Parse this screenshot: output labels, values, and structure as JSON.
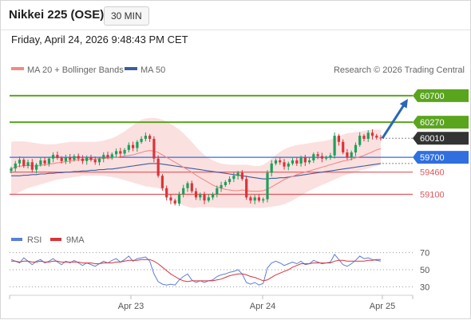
{
  "header": {
    "title": "Nikkei 225 (OSE)",
    "timeframe": "30 MIN",
    "datetime": "Friday, April 24, 2026 9:48:43 PM CET"
  },
  "legend": {
    "ma20": "MA 20 + Bollinger Bands",
    "ma50": "MA 50",
    "credit": "Research © 2026 Trading Central"
  },
  "rsi_legend": {
    "rsi": "RSI",
    "ma9": "9MA"
  },
  "colors": {
    "resistance": "#5aa51e",
    "support": "#e0565a",
    "pivot": "#2f6fe0",
    "last": "#333333",
    "up": "#1aa15a",
    "down": "#d9343a",
    "ma20": "#f28b82",
    "ma50": "#3d5d9e",
    "bollinger": "#fadada",
    "rsi": "#5b7fd6",
    "rsi_ma": "#d9343a",
    "arrow": "#2a66b8"
  },
  "chart_data": [
    {
      "type": "candlestick",
      "title": "Nikkei 225 (OSE)",
      "interval": "30 MIN",
      "x_ticks": [
        "Apr 23",
        "Apr 24",
        "Apr 25"
      ],
      "ylim": [
        58550,
        61100
      ],
      "levels": [
        {
          "label": "60700",
          "value": 60700,
          "kind": "resistance"
        },
        {
          "label": "60270",
          "value": 60270,
          "kind": "resistance"
        },
        {
          "label": "60010",
          "value": 60010,
          "kind": "last"
        },
        {
          "label": "59700",
          "value": 59700,
          "kind": "pivot"
        },
        {
          "label": "59460",
          "value": 59460,
          "kind": "support"
        },
        {
          "label": "59100",
          "value": 59100,
          "kind": "support"
        }
      ],
      "forecast_target": 60700,
      "closes": [
        59520,
        59600,
        59660,
        59560,
        59620,
        59500,
        59580,
        59650,
        59600,
        59680,
        59740,
        59690,
        59640,
        59700,
        59660,
        59720,
        59680,
        59640,
        59700,
        59660,
        59620,
        59680,
        59740,
        59700,
        59750,
        59800,
        59760,
        59820,
        59900,
        59850,
        59950,
        60000,
        60050,
        60000,
        59680,
        59400,
        59200,
        59050,
        59000,
        58950,
        59100,
        59200,
        59280,
        59150,
        59050,
        59100,
        59000,
        59050,
        59100,
        59200,
        59250,
        59300,
        59350,
        59400,
        59450,
        59350,
        59050,
        59000,
        59050,
        59000,
        59020,
        59450,
        59600,
        59650,
        59620,
        59550,
        59600,
        59650,
        59600,
        59700,
        59620,
        59650,
        59750,
        59720,
        59680,
        59700,
        59730,
        60050,
        59950,
        59780,
        59700,
        59780,
        59900,
        60050,
        60000,
        60100,
        60050,
        60020,
        60010
      ],
      "ma20": [
        59520,
        59540,
        59560,
        59560,
        59570,
        59560,
        59560,
        59570,
        59580,
        59590,
        59600,
        59610,
        59620,
        59630,
        59640,
        59650,
        59660,
        59660,
        59670,
        59670,
        59670,
        59680,
        59680,
        59690,
        59690,
        59700,
        59710,
        59720,
        59730,
        59740,
        59760,
        59780,
        59800,
        59810,
        59800,
        59780,
        59740,
        59700,
        59660,
        59620,
        59580,
        59540,
        59500,
        59460,
        59410,
        59370,
        59330,
        59290,
        59250,
        59220,
        59200,
        59180,
        59170,
        59160,
        59160,
        59170,
        59160,
        59150,
        59150,
        59150,
        59160,
        59180,
        59220,
        59260,
        59300,
        59340,
        59370,
        59390,
        59420,
        59440,
        59460,
        59480,
        59500,
        59520,
        59540,
        59560,
        59580,
        59600,
        59620,
        59640,
        59650,
        59670,
        59690,
        59710,
        59730,
        59760,
        59790,
        59820,
        59840
      ],
      "bb_upper": [
        59950,
        59960,
        59960,
        59960,
        59950,
        59940,
        59930,
        59920,
        59910,
        59910,
        59910,
        59920,
        59930,
        59940,
        59950,
        59950,
        59950,
        59950,
        59950,
        59950,
        59950,
        59960,
        59970,
        59990,
        60010,
        60040,
        60080,
        60120,
        60170,
        60220,
        60270,
        60310,
        60330,
        60340,
        60340,
        60330,
        60310,
        60280,
        60240,
        60200,
        60150,
        60090,
        60020,
        59950,
        59870,
        59800,
        59740,
        59690,
        59650,
        59620,
        59600,
        59590,
        59580,
        59580,
        59580,
        59580,
        59580,
        59570,
        59560,
        59560,
        59580,
        59620,
        59680,
        59740,
        59790,
        59830,
        59860,
        59880,
        59900,
        59910,
        59920,
        59930,
        59940,
        59950,
        59960,
        59970,
        59990,
        60010,
        60040,
        60070,
        60090,
        60100,
        60110,
        60120,
        60130,
        60140,
        60150,
        60150,
        60150
      ],
      "bb_lower": [
        59080,
        59100,
        59140,
        59170,
        59200,
        59220,
        59240,
        59260,
        59280,
        59300,
        59320,
        59340,
        59350,
        59360,
        59370,
        59380,
        59390,
        59400,
        59400,
        59400,
        59400,
        59400,
        59400,
        59390,
        59380,
        59370,
        59350,
        59330,
        59310,
        59290,
        59270,
        59250,
        59230,
        59220,
        59210,
        59200,
        59170,
        59120,
        59060,
        59000,
        58950,
        58920,
        58900,
        58880,
        58880,
        58890,
        58890,
        58890,
        58890,
        58880,
        58880,
        58880,
        58880,
        58880,
        58880,
        58880,
        58880,
        58880,
        58880,
        58880,
        58880,
        58890,
        58900,
        58910,
        58920,
        58940,
        58970,
        59000,
        59040,
        59080,
        59120,
        59160,
        59190,
        59220,
        59250,
        59280,
        59310,
        59340,
        59370,
        59400,
        59420,
        59440,
        59460,
        59480,
        59500,
        59520,
        59540,
        59560,
        59580
      ],
      "ma50": [
        59400,
        59400,
        59400,
        59410,
        59410,
        59420,
        59420,
        59430,
        59430,
        59440,
        59440,
        59450,
        59450,
        59460,
        59460,
        59470,
        59470,
        59480,
        59480,
        59490,
        59490,
        59500,
        59500,
        59510,
        59510,
        59520,
        59530,
        59540,
        59550,
        59560,
        59570,
        59580,
        59590,
        59600,
        59600,
        59600,
        59590,
        59580,
        59570,
        59560,
        59550,
        59540,
        59530,
        59520,
        59510,
        59500,
        59490,
        59480,
        59470,
        59460,
        59450,
        59440,
        59430,
        59420,
        59410,
        59400,
        59390,
        59380,
        59370,
        59360,
        59350,
        59350,
        59360,
        59360,
        59370,
        59370,
        59380,
        59390,
        59400,
        59410,
        59420,
        59430,
        59440,
        59450,
        59460,
        59470,
        59480,
        59490,
        59500,
        59510,
        59520,
        59530,
        59540,
        59550,
        59560,
        59570,
        59580,
        59590,
        59600
      ]
    },
    {
      "type": "line",
      "title": "RSI",
      "series_names": [
        "RSI",
        "9MA"
      ],
      "ylim": [
        20,
        80
      ],
      "y_ticks": [
        70,
        50,
        30
      ],
      "rsi": [
        62,
        60,
        58,
        64,
        60,
        56,
        60,
        62,
        58,
        60,
        63,
        59,
        56,
        60,
        58,
        61,
        58,
        55,
        58,
        56,
        54,
        57,
        60,
        58,
        61,
        63,
        59,
        62,
        66,
        60,
        63,
        64,
        65,
        60,
        45,
        36,
        33,
        32,
        33,
        32,
        38,
        42,
        45,
        38,
        35,
        37,
        35,
        37,
        38,
        42,
        44,
        45,
        47,
        48,
        50,
        45,
        35,
        33,
        35,
        32,
        34,
        52,
        58,
        60,
        58,
        55,
        57,
        59,
        57,
        60,
        56,
        57,
        61,
        59,
        57,
        58,
        59,
        68,
        62,
        56,
        54,
        57,
        61,
        66,
        63,
        64,
        62,
        61,
        60
      ],
      "ma9": [
        60,
        60,
        59,
        60,
        60,
        59,
        59,
        60,
        59,
        59,
        60,
        60,
        59,
        59,
        59,
        59,
        59,
        58,
        58,
        58,
        57,
        57,
        58,
        58,
        58,
        59,
        59,
        60,
        61,
        61,
        61,
        62,
        62,
        62,
        60,
        57,
        53,
        49,
        45,
        42,
        39,
        37,
        36,
        37,
        37,
        37,
        37,
        37,
        37,
        38,
        39,
        41,
        43,
        44,
        45,
        45,
        44,
        42,
        41,
        39,
        37,
        38,
        41,
        44,
        46,
        48,
        50,
        53,
        55,
        57,
        57,
        57,
        58,
        58,
        58,
        58,
        58,
        60,
        61,
        61,
        60,
        60,
        60,
        60,
        60,
        61,
        61,
        62,
        62
      ]
    }
  ]
}
